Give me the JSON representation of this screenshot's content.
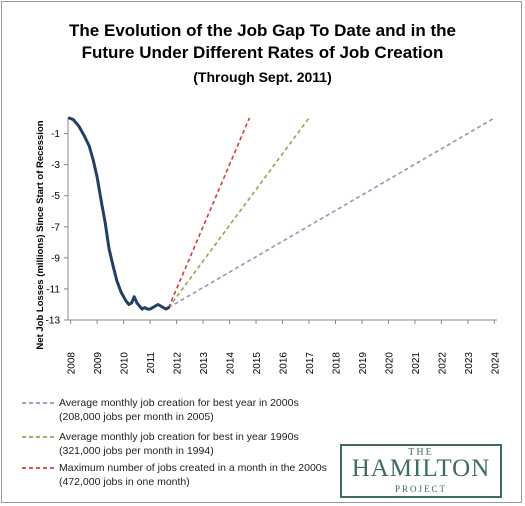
{
  "chart_data": {
    "type": "line",
    "title": "The Evolution of the Job Gap To Date and in the Future Under Different Rates of Job Creation",
    "title_line1": "The Evolution of the Job Gap To Date and in the",
    "title_line2": "Future Under Different Rates of Job Creation",
    "subtitle": "(Through Sept. 2011)",
    "ylabel": "Net Job Losses (millions) Since Start of Recession",
    "xlabel": "",
    "xlim": [
      2007.9,
      2024.1
    ],
    "ylim": [
      -13,
      0
    ],
    "ytick_labels": [
      "-1",
      "-3",
      "-5",
      "-7",
      "-9",
      "-11",
      "-13"
    ],
    "yticks": [
      -1,
      -3,
      -5,
      -7,
      -9,
      -11,
      -13
    ],
    "xtick_labels": [
      "2008",
      "2009",
      "2010",
      "2011",
      "2012",
      "2013",
      "2014",
      "2015",
      "2016",
      "2017",
      "2018",
      "2019",
      "2020",
      "2021",
      "2022",
      "2023",
      "2024"
    ],
    "xticks": [
      2008,
      2009,
      2010,
      2011,
      2012,
      2013,
      2014,
      2015,
      2016,
      2017,
      2018,
      2019,
      2020,
      2021,
      2022,
      2023,
      2024
    ],
    "grid": false,
    "legend_position": "bottom-left",
    "series": [
      {
        "name": "",
        "style": "solid",
        "color": "#243f64",
        "x": [
          2007.95,
          2008.1,
          2008.3,
          2008.5,
          2008.7,
          2008.85,
          2009.0,
          2009.15,
          2009.3,
          2009.45,
          2009.6,
          2009.75,
          2009.9,
          2010.0,
          2010.1,
          2010.2,
          2010.3,
          2010.4,
          2010.5,
          2010.6,
          2010.7,
          2010.8,
          2010.9,
          2011.0,
          2011.1,
          2011.2,
          2011.3,
          2011.4,
          2011.5,
          2011.6,
          2011.7
        ],
        "y": [
          0.0,
          -0.1,
          -0.5,
          -1.1,
          -1.8,
          -2.7,
          -3.8,
          -5.3,
          -6.7,
          -8.4,
          -9.5,
          -10.5,
          -11.2,
          -11.5,
          -11.8,
          -12.0,
          -11.9,
          -11.5,
          -11.9,
          -12.1,
          -12.3,
          -12.2,
          -12.3,
          -12.3,
          -12.2,
          -12.1,
          -12.0,
          -12.1,
          -12.2,
          -12.3,
          -12.2
        ]
      },
      {
        "name": "Average monthly job creation for best year in 2000s",
        "name_line2": "(208,000 jobs per month in 2005)",
        "style": "dashed",
        "color": "#9894b8",
        "x": [
          2011.7,
          2024.0
        ],
        "y": [
          -12.2,
          0.0
        ]
      },
      {
        "name": "Average monthly job creation for best in year 1990s",
        "name_line2": "(321,000 jobs per month in 1994)",
        "style": "dashed",
        "color": "#9ba34f",
        "x": [
          2011.7,
          2017.0
        ],
        "y": [
          -12.2,
          0.0
        ]
      },
      {
        "name": "Maximum number of jobs created in a month  in the 2000s",
        "name_line2": "(472,000 jobs in one month)",
        "style": "dashed",
        "color": "#d9393c",
        "x": [
          2011.7,
          2014.75
        ],
        "y": [
          -12.2,
          0.0
        ]
      }
    ]
  },
  "logo": {
    "the": "THE",
    "name": "HAMILTON",
    "project": "PROJECT"
  }
}
